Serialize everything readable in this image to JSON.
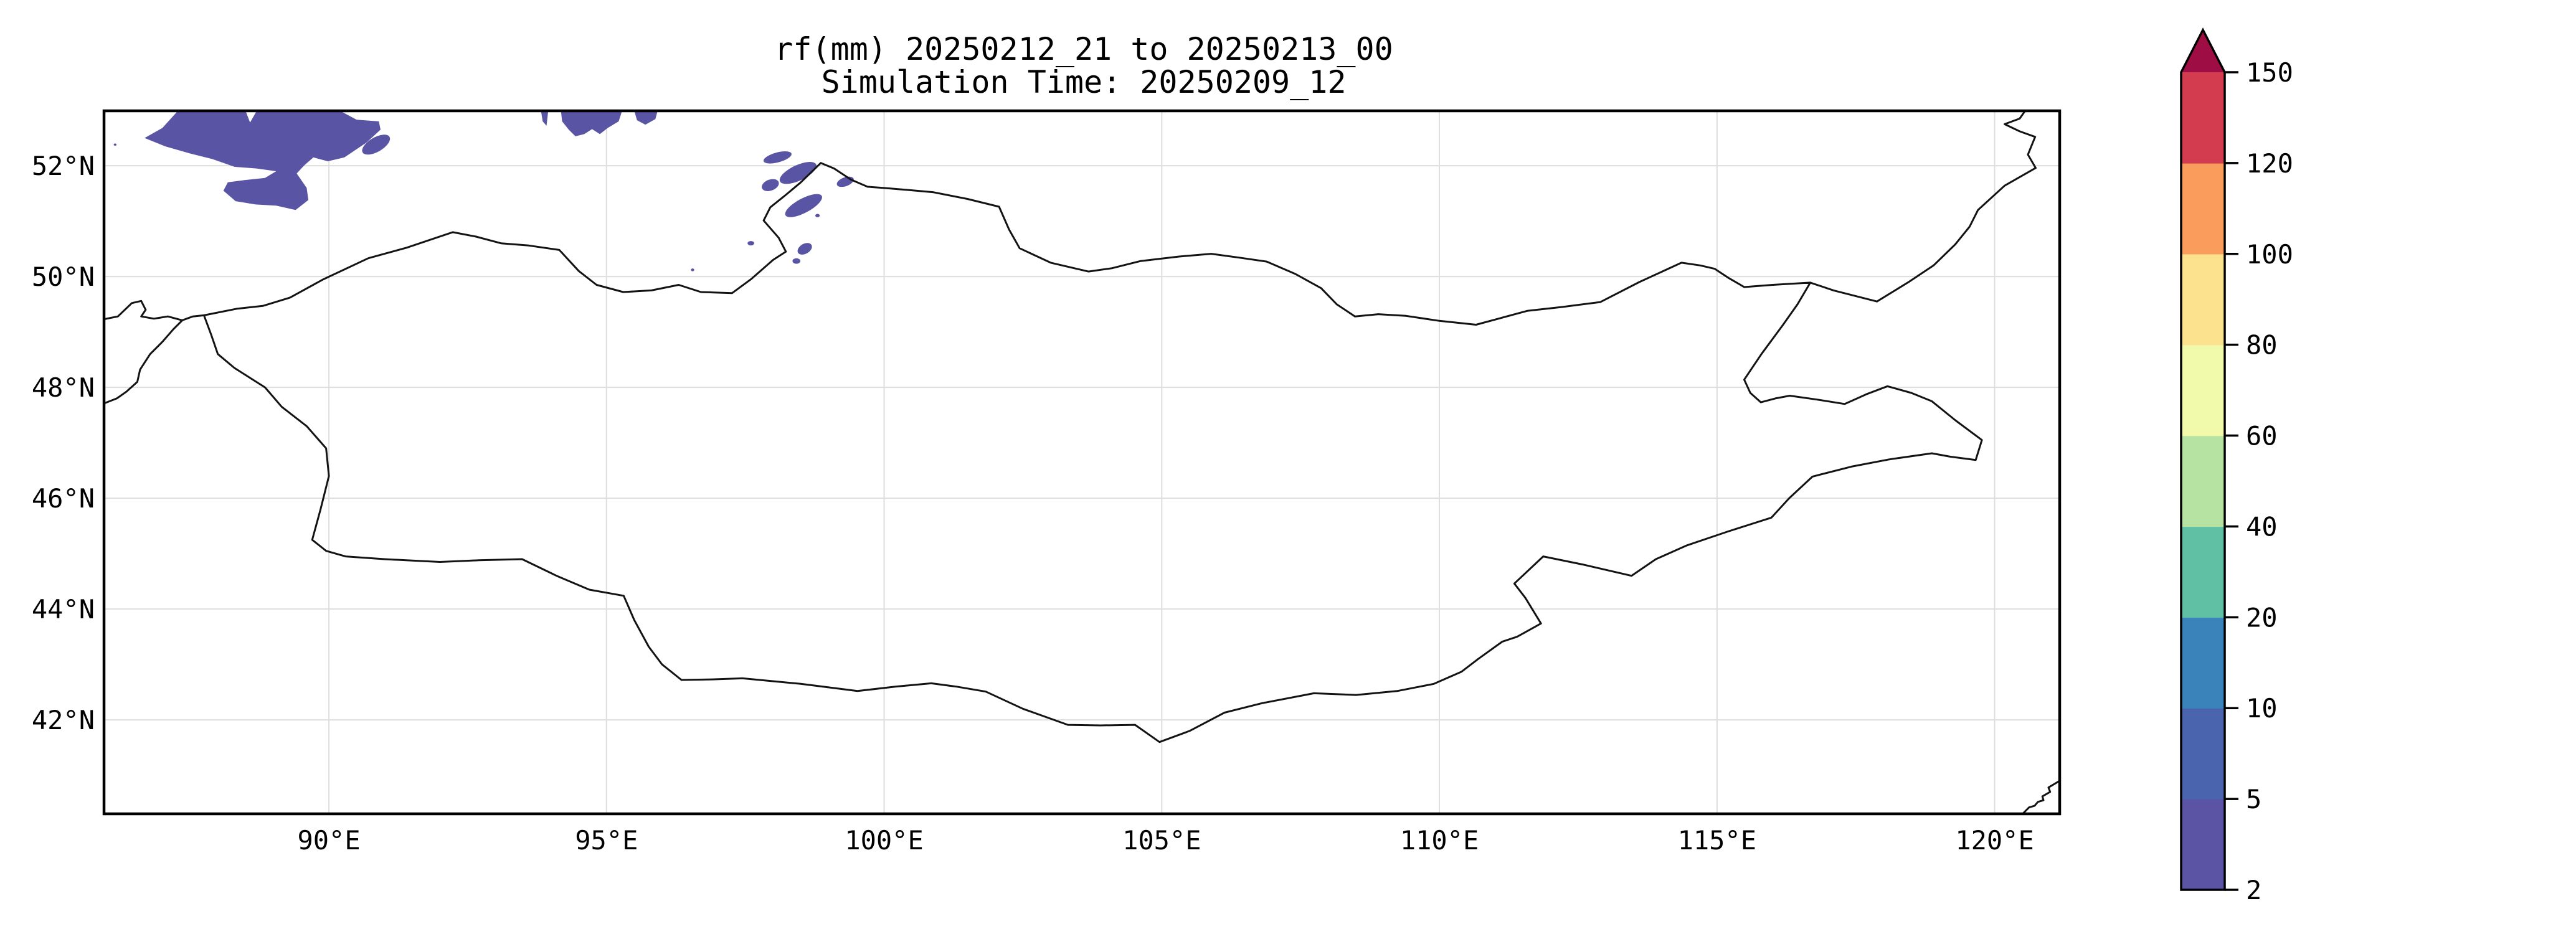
{
  "figure": {
    "title_line1": "rf(mm) 20250212_21 to 20250213_00",
    "title_line2": "Simulation Time: 20250209_12"
  },
  "map": {
    "extent": {
      "lon_min": 85.95,
      "lon_max": 121.17,
      "lat_min": 40.3,
      "lat_max": 52.99
    },
    "x_ticks": [
      {
        "label": "90°E",
        "lon": 90
      },
      {
        "label": "95°E",
        "lon": 95
      },
      {
        "label": "100°E",
        "lon": 100
      },
      {
        "label": "105°E",
        "lon": 105
      },
      {
        "label": "110°E",
        "lon": 110
      },
      {
        "label": "115°E",
        "lon": 115
      },
      {
        "label": "120°E",
        "lon": 120
      }
    ],
    "y_ticks": [
      {
        "label": "52°N",
        "lat": 52
      },
      {
        "label": "50°N",
        "lat": 50
      },
      {
        "label": "48°N",
        "lat": 48
      },
      {
        "label": "46°N",
        "lat": 46
      },
      {
        "label": "44°N",
        "lat": 44
      },
      {
        "label": "42°N",
        "lat": 42
      }
    ],
    "grid_color": "#dedede",
    "frame_color": "#000000",
    "border_line_color": "#131313"
  },
  "colorbar": {
    "tick_labels": [
      "2",
      "5",
      "10",
      "20",
      "40",
      "60",
      "80",
      "100",
      "120",
      "150"
    ],
    "levels": [
      2,
      5,
      10,
      20,
      40,
      60,
      80,
      100,
      120,
      150
    ],
    "segment_colors": [
      "#5b53a4",
      "#4a64ae",
      "#3a83ba",
      "#5fc0a4",
      "#b6e3a1",
      "#f1f9ab",
      "#fce28f",
      "#f99c5c",
      "#d23c4e"
    ],
    "over_color": "#9e0d44",
    "outline_color": "#000000"
  },
  "chart_data": {
    "type": "heatmap",
    "subtype": "geographic-precipitation-map",
    "title": "rf(mm) 20250212_21 to 20250213_00",
    "subtitle": "Simulation Time: 20250209_12",
    "variable": "3-hour accumulated rainfall (mm)",
    "x_axis": {
      "ticks": [
        "90°E",
        "95°E",
        "100°E",
        "105°E",
        "110°E",
        "115°E",
        "120°E"
      ],
      "range_deg_east": [
        85.95,
        121.17
      ]
    },
    "y_axis": {
      "ticks": [
        "52°N",
        "50°N",
        "48°N",
        "46°N",
        "44°N",
        "42°N"
      ],
      "range_deg_north": [
        40.3,
        52.99
      ]
    },
    "grid": true,
    "legend_position": "right-colorbar-extended-max",
    "colorbar_levels": [
      2,
      5,
      10,
      20,
      40,
      60,
      80,
      100,
      120,
      150
    ],
    "colorbar_colors": [
      "#5b53a4",
      "#4a64ae",
      "#3a83ba",
      "#5fc0a4",
      "#b6e3a1",
      "#f1f9ab",
      "#fce28f",
      "#f99c5c",
      "#d23c4e"
    ],
    "colorbar_over_color": "#9e0d44",
    "rain_color": "#5a54a4",
    "data_summary": "Only light rainfall (2-5 mm band) is present, as purple patches in the far northwest of the domain (~86.7-91E, 51.2-53N), thin patches along the top edge near 93.8-96E, and scattered small cells near 96.5-99.6E between 50.1-52.3N. The rest of the domain (Mongolia and surroundings) shows no rainfall.",
    "geometry": {
      "mongolia": [
        [
          87.75,
          49.3
        ],
        [
          88.35,
          49.42
        ],
        [
          88.81,
          49.47
        ],
        [
          89.3,
          49.62
        ],
        [
          89.9,
          49.95
        ],
        [
          90.71,
          50.33
        ],
        [
          91.4,
          50.52
        ],
        [
          92.23,
          50.8
        ],
        [
          92.65,
          50.72
        ],
        [
          93.1,
          50.6
        ],
        [
          93.6,
          50.56
        ],
        [
          94.15,
          50.48
        ],
        [
          94.5,
          50.1
        ],
        [
          94.82,
          49.85
        ],
        [
          95.3,
          49.72
        ],
        [
          95.81,
          49.75
        ],
        [
          96.3,
          49.85
        ],
        [
          96.7,
          49.72
        ],
        [
          97.26,
          49.7
        ],
        [
          97.6,
          49.95
        ],
        [
          98.0,
          50.3
        ],
        [
          98.23,
          50.45
        ],
        [
          98.1,
          50.7
        ],
        [
          97.83,
          51.01
        ],
        [
          97.95,
          51.25
        ],
        [
          98.2,
          51.45
        ],
        [
          98.5,
          51.7
        ],
        [
          98.86,
          52.05
        ],
        [
          99.1,
          51.95
        ],
        [
          99.4,
          51.75
        ],
        [
          99.7,
          51.62
        ],
        [
          99.98,
          51.6
        ],
        [
          100.45,
          51.56
        ],
        [
          100.89,
          51.52
        ],
        [
          101.5,
          51.4
        ],
        [
          102.07,
          51.26
        ],
        [
          102.25,
          50.85
        ],
        [
          102.44,
          50.51
        ],
        [
          103.0,
          50.25
        ],
        [
          103.68,
          50.09
        ],
        [
          104.1,
          50.15
        ],
        [
          104.62,
          50.28
        ],
        [
          105.3,
          50.36
        ],
        [
          105.89,
          50.41
        ],
        [
          106.4,
          50.34
        ],
        [
          106.89,
          50.27
        ],
        [
          107.4,
          50.05
        ],
        [
          107.87,
          49.79
        ],
        [
          108.15,
          49.5
        ],
        [
          108.48,
          49.28
        ],
        [
          108.9,
          49.32
        ],
        [
          109.4,
          49.29
        ],
        [
          110.0,
          49.2
        ],
        [
          110.66,
          49.13
        ],
        [
          111.1,
          49.25
        ],
        [
          111.58,
          49.38
        ],
        [
          112.2,
          49.45
        ],
        [
          112.9,
          49.54
        ],
        [
          113.6,
          49.9
        ],
        [
          114.36,
          50.25
        ],
        [
          114.7,
          50.2
        ],
        [
          114.96,
          50.14
        ],
        [
          115.2,
          49.98
        ],
        [
          115.49,
          49.81
        ],
        [
          116.0,
          49.85
        ],
        [
          116.68,
          49.89
        ],
        [
          116.45,
          49.5
        ],
        [
          116.19,
          49.13
        ],
        [
          115.8,
          48.6
        ],
        [
          115.49,
          48.14
        ],
        [
          115.6,
          47.9
        ],
        [
          115.79,
          47.73
        ],
        [
          116.05,
          47.8
        ],
        [
          116.31,
          47.85
        ],
        [
          116.8,
          47.78
        ],
        [
          117.3,
          47.7
        ],
        [
          117.7,
          47.88
        ],
        [
          118.07,
          48.02
        ],
        [
          118.5,
          47.9
        ],
        [
          118.87,
          47.75
        ],
        [
          119.3,
          47.4
        ],
        [
          119.77,
          47.05
        ],
        [
          119.66,
          46.69
        ],
        [
          119.2,
          46.75
        ],
        [
          118.87,
          46.81
        ],
        [
          118.1,
          46.7
        ],
        [
          117.42,
          46.57
        ],
        [
          116.72,
          46.39
        ],
        [
          116.3,
          46.0
        ],
        [
          115.98,
          45.65
        ],
        [
          115.2,
          45.4
        ],
        [
          114.46,
          45.15
        ],
        [
          113.9,
          44.9
        ],
        [
          113.46,
          44.6
        ],
        [
          112.6,
          44.8
        ],
        [
          111.87,
          44.95
        ],
        [
          111.35,
          44.46
        ],
        [
          111.55,
          44.2
        ],
        [
          111.83,
          43.74
        ],
        [
          111.4,
          43.5
        ],
        [
          111.13,
          43.41
        ],
        [
          110.7,
          43.1
        ],
        [
          110.4,
          42.87
        ],
        [
          109.9,
          42.65
        ],
        [
          109.24,
          42.52
        ],
        [
          108.5,
          42.45
        ],
        [
          107.74,
          42.48
        ],
        [
          106.8,
          42.3
        ],
        [
          106.13,
          42.13
        ],
        [
          105.5,
          41.8
        ],
        [
          104.96,
          41.6
        ],
        [
          104.52,
          41.91
        ],
        [
          103.9,
          41.9
        ],
        [
          103.31,
          41.91
        ],
        [
          102.5,
          42.2
        ],
        [
          101.83,
          42.51
        ],
        [
          101.3,
          42.6
        ],
        [
          100.85,
          42.66
        ],
        [
          100.2,
          42.6
        ],
        [
          99.52,
          42.52
        ],
        [
          98.5,
          42.65
        ],
        [
          97.45,
          42.75
        ],
        [
          96.9,
          42.73
        ],
        [
          96.35,
          42.72
        ],
        [
          96.0,
          43.0
        ],
        [
          95.76,
          43.32
        ],
        [
          95.5,
          43.8
        ],
        [
          95.31,
          44.24
        ],
        [
          94.69,
          44.35
        ],
        [
          94.1,
          44.6
        ],
        [
          93.48,
          44.9
        ],
        [
          92.7,
          44.88
        ],
        [
          92.0,
          44.85
        ],
        [
          91.0,
          44.9
        ],
        [
          90.3,
          44.95
        ],
        [
          89.95,
          45.05
        ],
        [
          89.7,
          45.25
        ],
        [
          89.85,
          45.8
        ],
        [
          90.0,
          46.4
        ],
        [
          89.95,
          46.9
        ],
        [
          89.6,
          47.3
        ],
        [
          89.15,
          47.65
        ],
        [
          88.85,
          48.0
        ],
        [
          88.3,
          48.35
        ],
        [
          88.0,
          48.6
        ],
        [
          87.88,
          48.95
        ],
        [
          87.75,
          49.3
        ]
      ],
      "russia_china_border": [
        [
          116.68,
          49.89
        ],
        [
          117.1,
          49.75
        ],
        [
          117.88,
          49.55
        ],
        [
          118.45,
          49.9
        ],
        [
          118.9,
          50.2
        ],
        [
          119.29,
          50.58
        ],
        [
          119.55,
          50.9
        ],
        [
          119.7,
          51.2
        ],
        [
          120.18,
          51.64
        ],
        [
          120.74,
          51.96
        ],
        [
          120.6,
          52.2
        ],
        [
          120.73,
          52.52
        ],
        [
          120.45,
          52.62
        ],
        [
          120.18,
          52.75
        ],
        [
          120.45,
          52.85
        ],
        [
          120.55,
          52.99
        ]
      ],
      "west_border_a": [
        [
          85.95,
          49.23
        ],
        [
          86.2,
          49.28
        ],
        [
          86.45,
          49.52
        ],
        [
          86.62,
          49.56
        ],
        [
          86.7,
          49.4
        ],
        [
          86.62,
          49.28
        ],
        [
          86.85,
          49.24
        ],
        [
          87.1,
          49.28
        ],
        [
          87.36,
          49.21
        ]
      ],
      "west_border_b": [
        [
          85.95,
          47.71
        ],
        [
          86.18,
          47.8
        ],
        [
          86.35,
          47.92
        ],
        [
          86.55,
          48.1
        ],
        [
          86.6,
          48.32
        ],
        [
          86.78,
          48.6
        ],
        [
          87.0,
          48.82
        ],
        [
          87.2,
          49.05
        ],
        [
          87.36,
          49.21
        ]
      ],
      "west_border_c": [
        [
          87.36,
          49.21
        ],
        [
          87.55,
          49.28
        ],
        [
          87.75,
          49.3
        ]
      ],
      "coastline": [
        [
          120.5,
          40.3
        ],
        [
          120.62,
          40.42
        ],
        [
          120.72,
          40.45
        ],
        [
          120.78,
          40.52
        ],
        [
          120.88,
          40.55
        ],
        [
          120.86,
          40.62
        ],
        [
          121.0,
          40.7
        ],
        [
          120.97,
          40.78
        ],
        [
          121.17,
          40.9
        ]
      ],
      "rain_polygons": [
        [
          [
            87.28,
            52.99
          ],
          [
            88.5,
            52.99
          ],
          [
            88.58,
            52.78
          ],
          [
            88.7,
            52.99
          ],
          [
            90.2,
            52.99
          ],
          [
            90.5,
            52.83
          ],
          [
            90.9,
            52.8
          ],
          [
            90.93,
            52.65
          ],
          [
            90.68,
            52.42
          ],
          [
            90.28,
            52.15
          ],
          [
            89.98,
            52.08
          ],
          [
            89.72,
            52.15
          ],
          [
            89.55,
            52.0
          ],
          [
            89.42,
            51.86
          ],
          [
            89.6,
            51.6
          ],
          [
            89.63,
            51.38
          ],
          [
            89.4,
            51.2
          ],
          [
            89.05,
            51.28
          ],
          [
            88.68,
            51.3
          ],
          [
            88.32,
            51.36
          ],
          [
            88.1,
            51.55
          ],
          [
            88.18,
            51.7
          ],
          [
            88.48,
            51.74
          ],
          [
            88.85,
            51.78
          ],
          [
            89.05,
            51.9
          ],
          [
            88.7,
            51.95
          ],
          [
            88.3,
            51.98
          ],
          [
            87.9,
            52.12
          ],
          [
            87.5,
            52.22
          ],
          [
            87.05,
            52.35
          ],
          [
            86.68,
            52.5
          ],
          [
            87.0,
            52.68
          ]
        ],
        [
          [
            94.18,
            52.99
          ],
          [
            95.28,
            52.99
          ],
          [
            95.22,
            52.8
          ],
          [
            95.02,
            52.68
          ],
          [
            94.88,
            52.57
          ],
          [
            94.74,
            52.66
          ],
          [
            94.6,
            52.57
          ],
          [
            94.44,
            52.53
          ],
          [
            94.32,
            52.65
          ],
          [
            94.2,
            52.8
          ]
        ],
        [
          [
            95.5,
            52.99
          ],
          [
            95.92,
            52.99
          ],
          [
            95.88,
            52.84
          ],
          [
            95.7,
            52.74
          ],
          [
            95.55,
            52.82
          ]
        ],
        [
          [
            93.82,
            52.99
          ],
          [
            93.95,
            52.99
          ],
          [
            93.92,
            52.72
          ],
          [
            93.85,
            52.8
          ]
        ]
      ],
      "rain_ellipses": [
        {
          "cx": 90.85,
          "cy": 52.38,
          "rx": 0.28,
          "ry": 0.13,
          "rot": -30
        },
        {
          "cx": 98.08,
          "cy": 52.15,
          "rx": 0.26,
          "ry": 0.09,
          "rot": -15
        },
        {
          "cx": 98.45,
          "cy": 51.87,
          "rx": 0.36,
          "ry": 0.14,
          "rot": -25
        },
        {
          "cx": 97.95,
          "cy": 51.65,
          "rx": 0.16,
          "ry": 0.1,
          "rot": -20
        },
        {
          "cx": 98.55,
          "cy": 51.28,
          "rx": 0.37,
          "ry": 0.13,
          "rot": -28
        },
        {
          "cx": 99.3,
          "cy": 51.71,
          "rx": 0.16,
          "ry": 0.08,
          "rot": -20
        },
        {
          "cx": 98.8,
          "cy": 51.1,
          "rx": 0.04,
          "ry": 0.03,
          "rot": 0
        },
        {
          "cx": 98.57,
          "cy": 50.5,
          "rx": 0.14,
          "ry": 0.09,
          "rot": -30
        },
        {
          "cx": 98.42,
          "cy": 50.28,
          "rx": 0.07,
          "ry": 0.05,
          "rot": 0
        },
        {
          "cx": 97.6,
          "cy": 50.6,
          "rx": 0.06,
          "ry": 0.04,
          "rot": 0
        },
        {
          "cx": 96.55,
          "cy": 50.12,
          "rx": 0.03,
          "ry": 0.025,
          "rot": 0
        },
        {
          "cx": 86.15,
          "cy": 52.38,
          "rx": 0.025,
          "ry": 0.02,
          "rot": 0
        }
      ]
    }
  }
}
